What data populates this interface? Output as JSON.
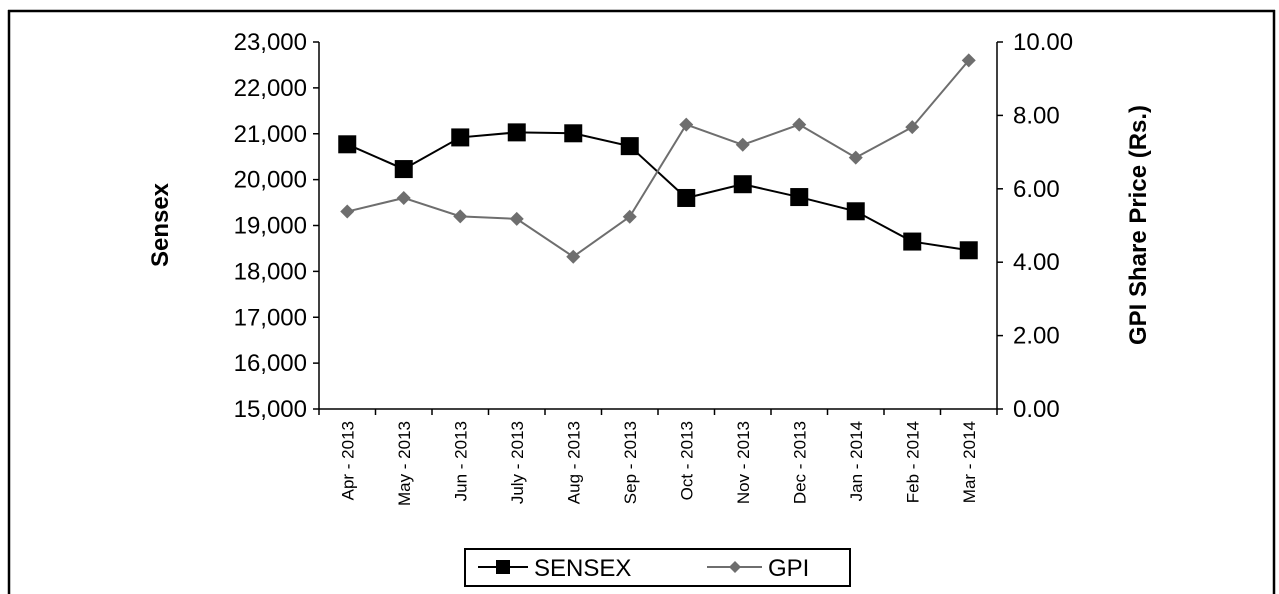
{
  "chart_data": {
    "type": "line",
    "categories": [
      "Apr - 2013",
      "May - 2013",
      "Jun - 2013",
      "July - 2013",
      "Aug - 2013",
      "Sep - 2013",
      "Oct - 2013",
      "Nov - 2013",
      "Dec - 2013",
      "Jan - 2014",
      "Feb - 2014",
      "Mar - 2014"
    ],
    "series": [
      {
        "name": "SENSEX",
        "axis": "left",
        "marker": "square",
        "color": "#000000",
        "values": [
          20770,
          20230,
          20920,
          21030,
          21010,
          20730,
          19600,
          19900,
          19620,
          19310,
          18650,
          18460
        ]
      },
      {
        "name": "GPI",
        "axis": "right",
        "marker": "diamond",
        "color": "#6e6e6e",
        "values": [
          5.38,
          5.75,
          5.25,
          5.18,
          4.15,
          5.24,
          7.75,
          7.2,
          7.75,
          6.85,
          7.68,
          9.5
        ]
      }
    ],
    "ylabel": "Sensex",
    "ylabel_right": "GPI Share Price (Rs.)",
    "ylim": [
      15000,
      23000
    ],
    "ylim_right": [
      0,
      10
    ],
    "yticks": [
      "15,000",
      "16,000",
      "17,000",
      "18,000",
      "19,000",
      "20,000",
      "21,000",
      "22,000",
      "23,000"
    ],
    "yticks_right": [
      "0.00",
      "2.00",
      "4.00",
      "6.00",
      "8.00",
      "10.00"
    ],
    "grid": false,
    "legend": "bottom-center"
  }
}
